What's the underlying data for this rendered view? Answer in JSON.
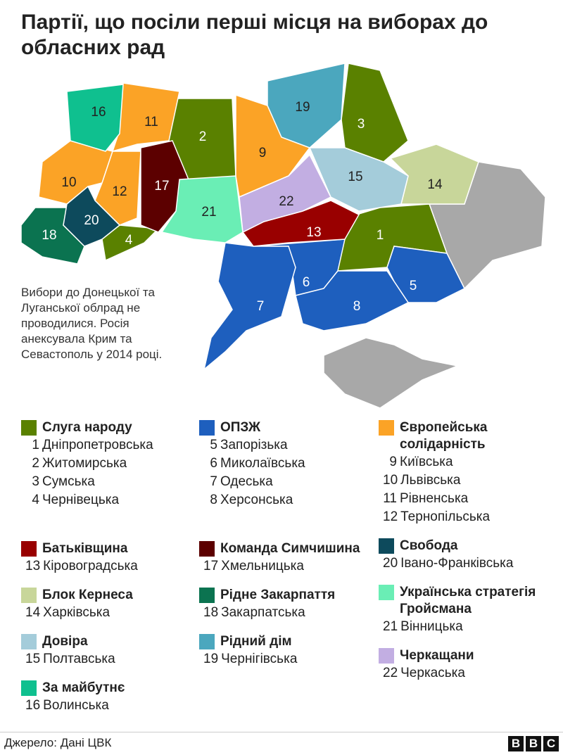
{
  "title": "Партії, що посіли перші місця на виборах до обласних рад",
  "note": "Вибори до Донецької та Луганської облрад не проводилися. Росія анексувала Крим та Севастополь у 2014 році.",
  "no_election_color": "#a8a8a8",
  "legend": [
    {
      "party": "Слуга народу",
      "color": "#5a8100",
      "regions": [
        {
          "n": "1",
          "name": "Дніпропетровська"
        },
        {
          "n": "2",
          "name": "Житомирська"
        },
        {
          "n": "3",
          "name": "Сумська"
        },
        {
          "n": "4",
          "name": "Чернівецька"
        }
      ]
    },
    {
      "party": "ОПЗЖ",
      "color": "#1e5fbe",
      "regions": [
        {
          "n": "5",
          "name": "Запорізька"
        },
        {
          "n": "6",
          "name": "Миколаївська"
        },
        {
          "n": "7",
          "name": "Одеська"
        },
        {
          "n": "8",
          "name": "Херсонська"
        }
      ]
    },
    {
      "party": "Європейська солідарність",
      "color": "#fba326",
      "regions": [
        {
          "n": "9",
          "name": "Київська"
        },
        {
          "n": "10",
          "name": "Львівська"
        },
        {
          "n": "11",
          "name": "Рівненська"
        },
        {
          "n": "12",
          "name": "Тернопільська"
        }
      ]
    },
    {
      "party": "Батьківщина",
      "color": "#990000",
      "regions": [
        {
          "n": "13",
          "name": "Кіровоградська"
        }
      ]
    },
    {
      "party": "Блок Кернеса",
      "color": "#c8d69a",
      "regions": [
        {
          "n": "14",
          "name": "Харківська"
        }
      ]
    },
    {
      "party": "Довіра",
      "color": "#a4ccda",
      "regions": [
        {
          "n": "15",
          "name": "Полтавська"
        }
      ]
    },
    {
      "party": "За майбутнє",
      "color": "#0fc08f",
      "regions": [
        {
          "n": "16",
          "name": "Волинська"
        }
      ]
    },
    {
      "party": "Команда Симчишина",
      "color": "#5c0000",
      "regions": [
        {
          "n": "17",
          "name": "Хмельницька"
        }
      ]
    },
    {
      "party": "Рідне Закарпаття",
      "color": "#0b7350",
      "regions": [
        {
          "n": "18",
          "name": "Закарпатська"
        }
      ]
    },
    {
      "party": "Рідний дім",
      "color": "#4ba7be",
      "regions": [
        {
          "n": "19",
          "name": "Чернігівська"
        }
      ]
    },
    {
      "party": "Свобода",
      "color": "#0d4a5c",
      "regions": [
        {
          "n": "20",
          "name": "Івано-Франківська"
        }
      ]
    },
    {
      "party": "Українська стратегія Гройсмана",
      "color": "#6aeeb5",
      "regions": [
        {
          "n": "21",
          "name": "Вінницька"
        }
      ]
    },
    {
      "party": "Черкащани",
      "color": "#c2aee2",
      "regions": [
        {
          "n": "22",
          "name": "Черкаська"
        }
      ]
    }
  ],
  "footer": {
    "source": "Джерело: Дані ЦВК",
    "logo": "BBC"
  }
}
